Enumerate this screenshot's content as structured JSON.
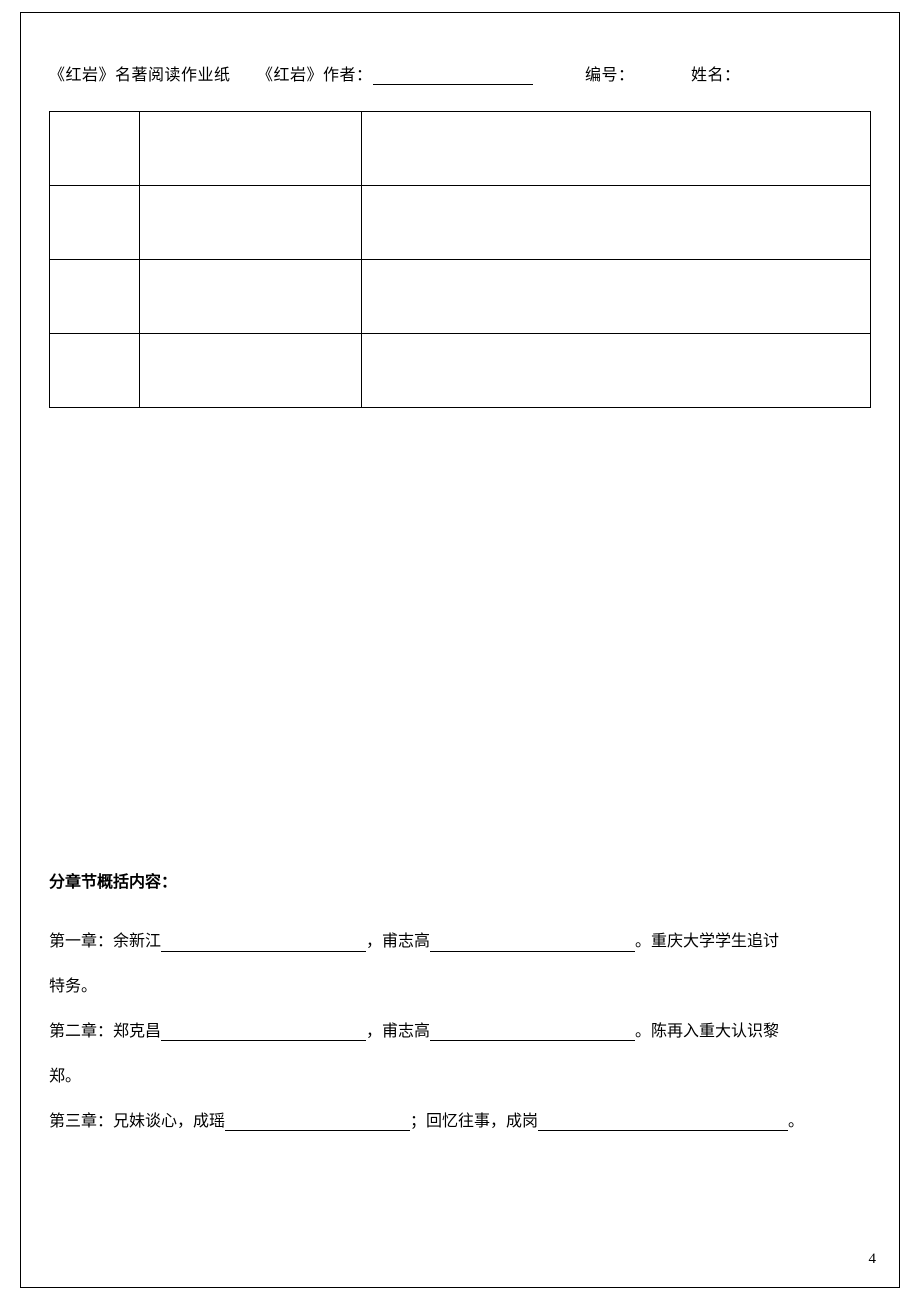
{
  "header": {
    "title": "《红岩》名著阅读作业纸",
    "author_label": "《红岩》作者：",
    "number_label": "编号：",
    "name_label": "姓名："
  },
  "section": {
    "title": "分章节概括内容："
  },
  "chapters": {
    "ch1_prefix": "第一章：余新江",
    "ch1_mid": "，甫志高",
    "ch1_suffix": "。重庆大学学生追讨",
    "ch1_cont": "特务。",
    "ch2_prefix": "第二章：郑克昌",
    "ch2_mid": "，甫志高",
    "ch2_suffix": "。陈再入重大认识黎",
    "ch2_cont": "郑。",
    "ch3_prefix": "第三章：兄妹谈心，成瑶",
    "ch3_mid": "；回忆往事，成岗",
    "ch3_suffix": "。"
  },
  "page_number": "4"
}
